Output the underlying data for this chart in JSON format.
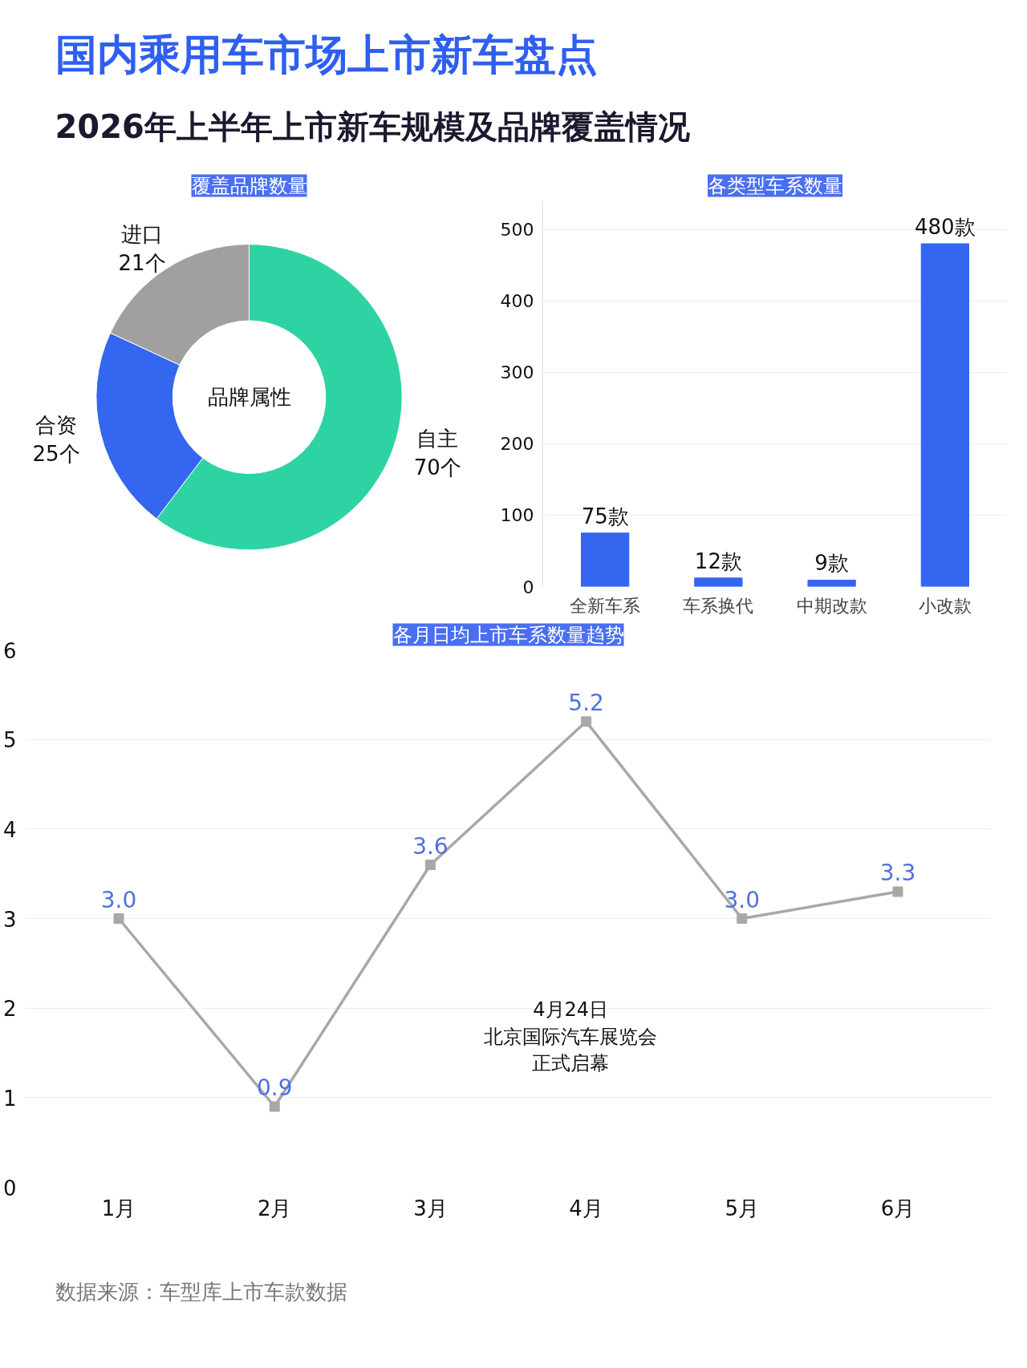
{
  "chart_data": [
    {
      "type": "other",
      "title": "国内乘用车市场上市新车盘点",
      "subtitle": "2026年上半年上市新车规模及品牌覆盖情况",
      "annotations": [
        "数据来源：车型库上市车款数据"
      ]
    },
    {
      "type": "donut",
      "title": "覆盖品牌数量",
      "categories": [
        "自主",
        "合资",
        "进口"
      ],
      "values": [
        70,
        25,
        21
      ],
      "colors": [
        "#2ed3a3",
        "#3566f0",
        "#a0a0a0"
      ],
      "value_labels": [
        "70个",
        "25个",
        "21个"
      ],
      "annotations": [
        "品牌属性"
      ]
    },
    {
      "type": "bar",
      "title": "各类型车系数量",
      "categories": [
        "全新车系",
        "车系换代",
        "中期改款",
        "小改款"
      ],
      "values": [
        75,
        12,
        9,
        480
      ],
      "color": "#3566f0",
      "value_labels": [
        "75款",
        "12款",
        "9款",
        "480款"
      ],
      "ylim": [
        0,
        540
      ],
      "yticks": [
        0,
        100,
        200,
        300,
        400,
        500
      ],
      "grid": "y"
    },
    {
      "type": "line",
      "title": "各月日均上市车系数量趋势",
      "categories": [
        "1月",
        "2月",
        "3月",
        "4月",
        "5月",
        "6月"
      ],
      "values": [
        3.0,
        0.9,
        3.6,
        5.2,
        3.0,
        3.3
      ],
      "color": "#a8a8a8",
      "value_labels": [
        "3.0",
        "0.9",
        "3.6",
        "5.2",
        "3.0",
        "3.3"
      ],
      "ylim": [
        0,
        6
      ],
      "yticks": [
        0,
        1,
        2,
        3,
        4,
        5,
        6
      ],
      "grid": "y",
      "marker": "square",
      "line_style": "solid",
      "annotations": [
        "4月24日",
        "北京国际汽车展览会",
        "正式启幕"
      ]
    }
  ]
}
